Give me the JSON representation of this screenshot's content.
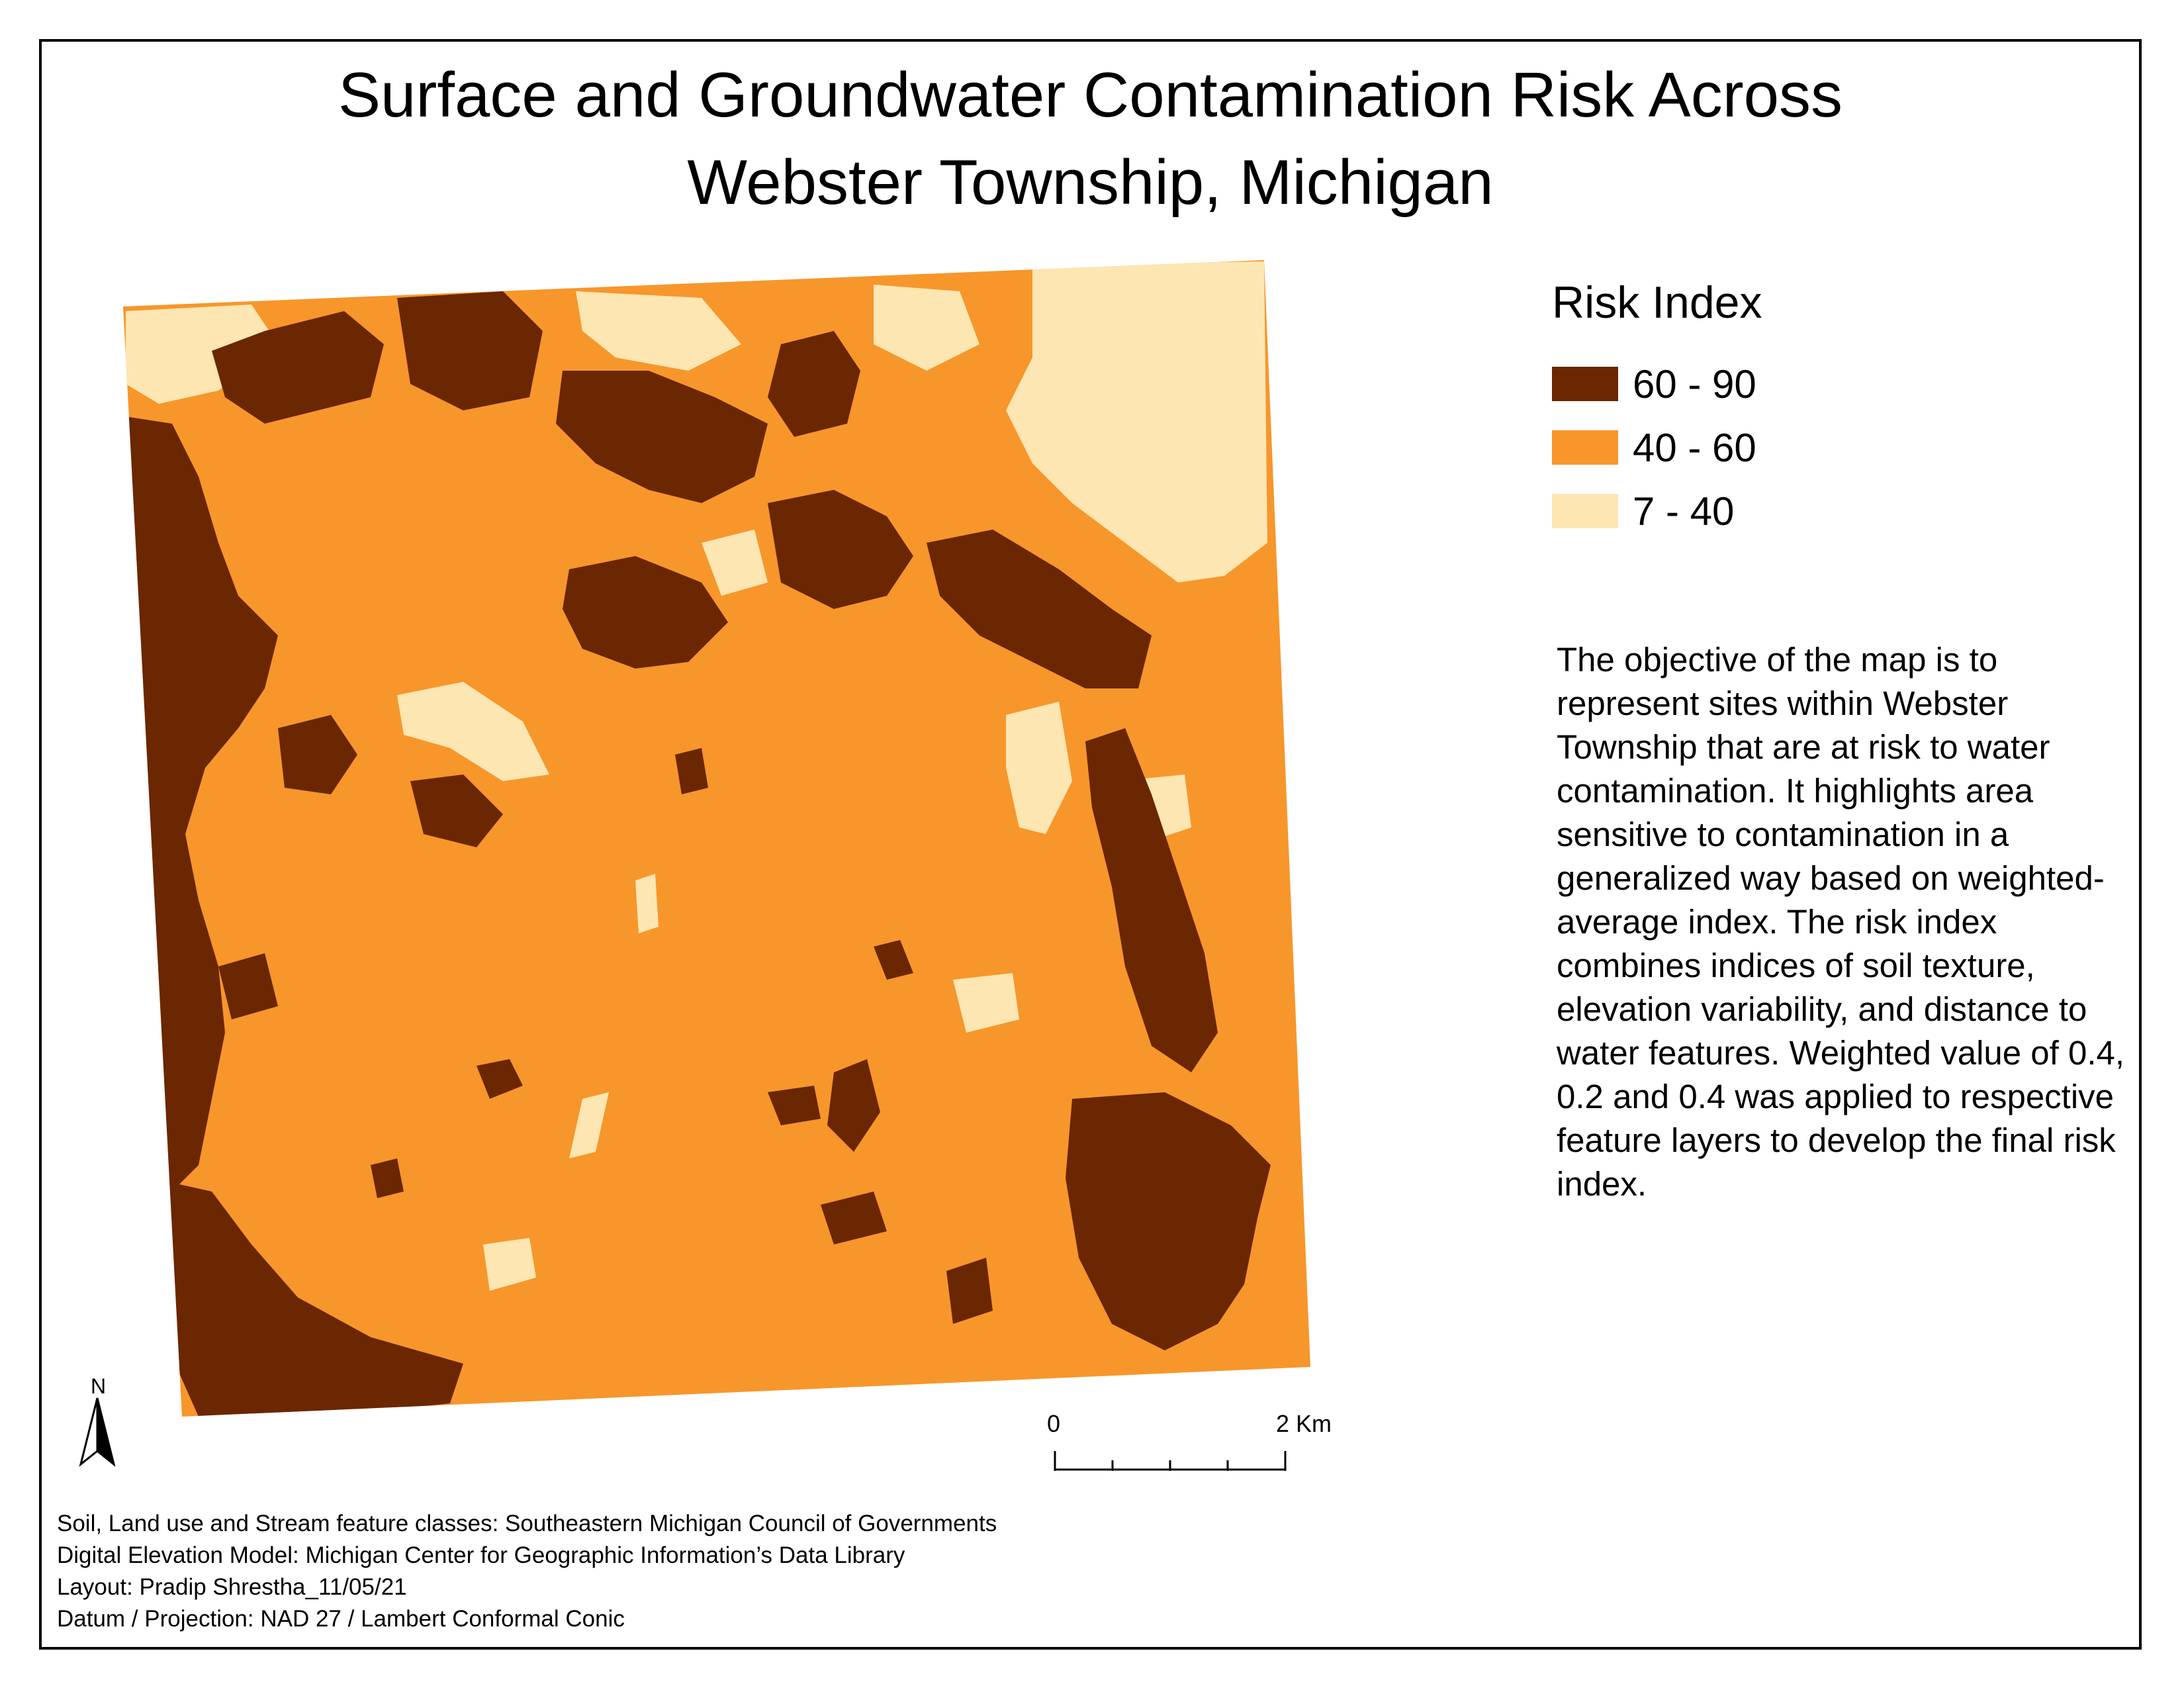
{
  "title": {
    "line1": "Surface and Groundwater Contamination Risk Across",
    "line2": "Webster Township, Michigan"
  },
  "legend": {
    "title": "Risk Index",
    "items": [
      {
        "label": "60 - 90",
        "color": "#6b2602"
      },
      {
        "label": "40 - 60",
        "color": "#f7962b"
      },
      {
        "label": "7 - 40",
        "color": "#fde6b2"
      }
    ]
  },
  "objective": "The objective of the map is to represent sites within Webster Township that are at risk to water contamination. It highlights area sensitive to contamination in a generalized way based on weighted-average index. The risk index combines indices of soil texture, elevation variability, and distance to water features. Weighted value of 0.4, 0.2 and 0.4 was applied to respective feature layers to develop the final risk index.",
  "north_arrow": {
    "label": "N"
  },
  "scale_bar": {
    "start_label": "0",
    "end_label": "2 Km"
  },
  "credits": [
    "Soil, Land use and Stream feature classes: Southeastern Michigan Council of Governments",
    "Digital Elevation Model: Michigan Center for Geographic Information’s Data Library",
    "Layout: Pradip Shrestha_11/05/21",
    "Datum / Projection: NAD 27 / Lambert Conformal Conic"
  ],
  "colors": {
    "high": "#6b2602",
    "medium": "#f7962b",
    "low": "#fde6b2"
  }
}
